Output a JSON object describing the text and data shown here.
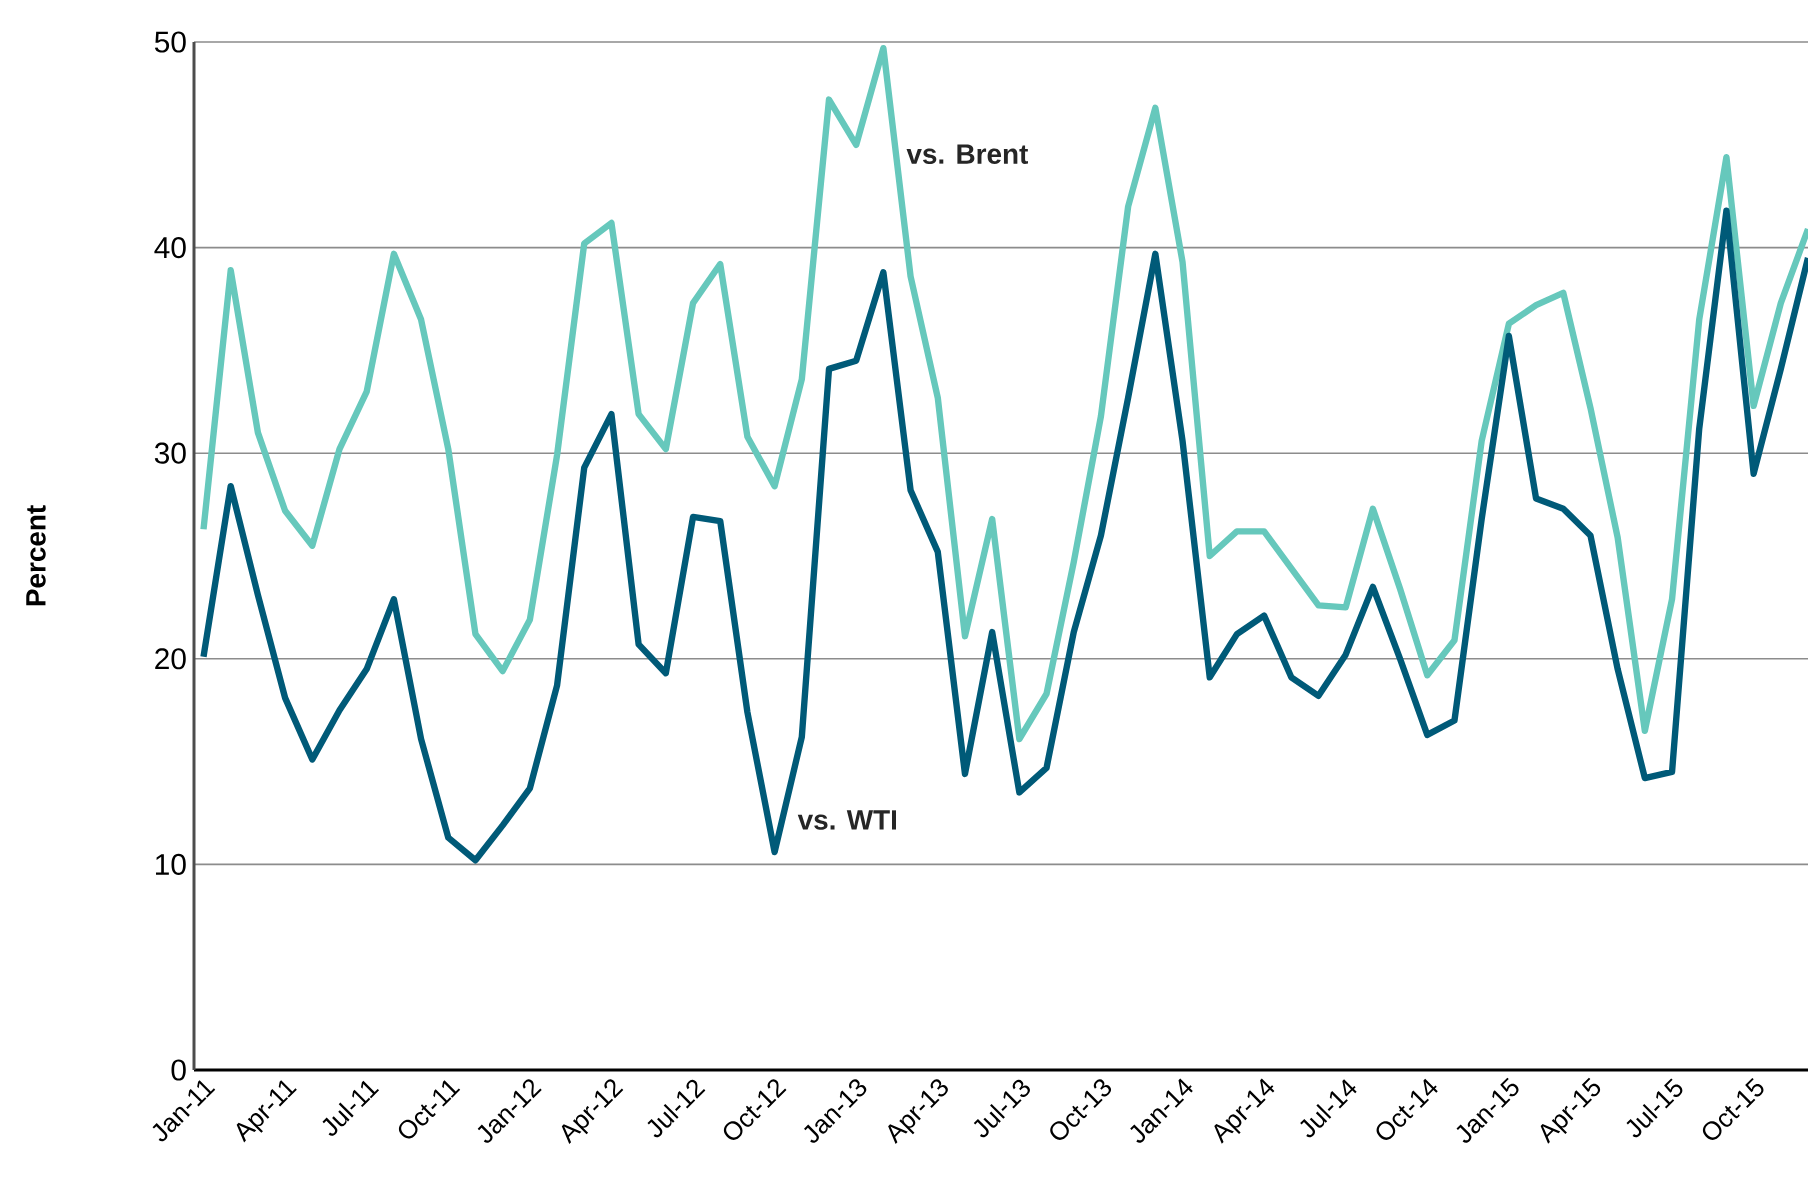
{
  "chart_data": {
    "type": "line",
    "ylabel": "Percent",
    "ylim": [
      0,
      50
    ],
    "yticks": [
      0,
      10,
      20,
      30,
      40,
      50
    ],
    "grid": "y",
    "categories": [
      "Jan-11",
      null,
      null,
      "Apr-11",
      null,
      null,
      "Jul-11",
      null,
      null,
      "Oct-11",
      null,
      null,
      "Jan-12",
      null,
      null,
      "Apr-12",
      null,
      null,
      "Jul-12",
      null,
      null,
      "Oct-12",
      null,
      null,
      "Jan-13",
      null,
      null,
      "Apr-13",
      null,
      null,
      "Jul-13",
      null,
      null,
      "Oct-13",
      null,
      null,
      "Jan-14",
      null,
      null,
      "Apr-14",
      null,
      null,
      "Jul-14",
      null,
      null,
      "Oct-14",
      null,
      null,
      "Jan-15",
      null,
      null,
      "Apr-15",
      null,
      null,
      "Jul-15",
      null,
      null,
      "Oct-15",
      null,
      null
    ],
    "series": [
      {
        "name": "vs. Brent",
        "color": "#66c8bc",
        "values": [
          26.3,
          38.9,
          31.0,
          27.2,
          25.5,
          30.2,
          33.0,
          39.7,
          36.5,
          30.2,
          21.2,
          19.4,
          21.9,
          29.9,
          40.2,
          41.2,
          31.9,
          30.2,
          37.3,
          39.2,
          30.8,
          28.4,
          33.6,
          47.2,
          45.0,
          49.7,
          38.6,
          32.7,
          21.1,
          26.8,
          16.1,
          18.3,
          24.7,
          31.8,
          42.0,
          46.8,
          39.3,
          25.0,
          26.2,
          26.2,
          24.4,
          22.6,
          22.5,
          27.3,
          23.4,
          19.2,
          20.9,
          30.6,
          36.3,
          37.2,
          37.8,
          32.2,
          25.9,
          16.5,
          22.9,
          36.5,
          44.4,
          32.3,
          37.3,
          40.9
        ]
      },
      {
        "name": "vs. WTI",
        "color": "#005a78",
        "values": [
          20.1,
          28.4,
          23.1,
          18.1,
          15.1,
          17.5,
          19.5,
          22.9,
          16.1,
          11.3,
          10.2,
          11.9,
          13.7,
          18.7,
          29.3,
          31.9,
          20.7,
          19.3,
          26.9,
          26.7,
          17.4,
          10.6,
          16.2,
          34.1,
          34.5,
          38.8,
          28.2,
          25.2,
          14.4,
          21.3,
          13.5,
          14.7,
          21.3,
          26.0,
          32.7,
          39.7,
          30.6,
          19.1,
          21.2,
          22.1,
          19.1,
          18.2,
          20.2,
          23.5,
          20.0,
          16.3,
          17.0,
          26.8,
          35.7,
          27.8,
          27.3,
          26.0,
          19.5,
          14.2,
          14.5,
          31.2,
          41.8,
          29.0,
          34.1,
          39.5
        ]
      }
    ]
  }
}
